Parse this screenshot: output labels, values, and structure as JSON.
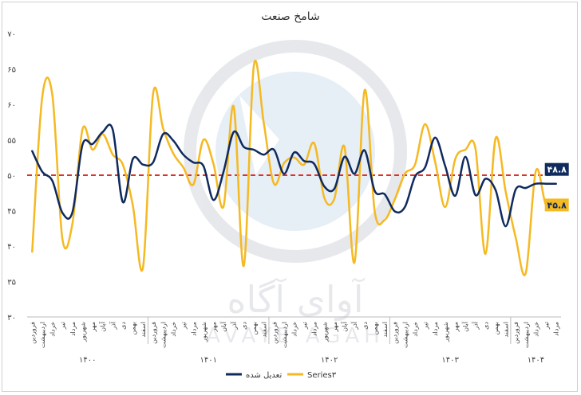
{
  "chart_data": {
    "type": "line",
    "title": "شامخ صنعت",
    "ylim": [
      30,
      70
    ],
    "yticks": [
      "۷۰",
      "۶۵",
      "۶۰",
      "۵۵",
      "۵۰",
      "۴۵",
      "۴۰",
      "۳۵",
      "۳۰"
    ],
    "ytick_values": [
      70,
      65,
      60,
      55,
      50,
      45,
      40,
      35,
      30
    ],
    "categories": [
      "فروردین",
      "اردیبهشت",
      "خرداد",
      "تیر",
      "مرداد",
      "شهریور",
      "مهر",
      "آبان",
      "آذر",
      "دی",
      "بهمن",
      "اسفند",
      "فروردین",
      "اردیبهشت",
      "خرداد",
      "تیر",
      "مرداد",
      "شهریور",
      "مهر",
      "آبان",
      "آذر",
      "دی",
      "بهمن",
      "اسفند",
      "فروردین",
      "اردیبهشت",
      "خرداد",
      "تیر",
      "مرداد",
      "شهریور",
      "مهر",
      "آبان",
      "آذر",
      "دی",
      "بهمن",
      "اسفند",
      "فروردین",
      "اردیبهشت",
      "خرداد",
      "تیر",
      "مرداد",
      "شهریور",
      "مهر",
      "آبان",
      "آذر",
      "دی",
      "بهمن",
      "اسفند",
      "فروردین",
      "اردیبهشت",
      "خرداد",
      "تیر",
      "مرداد"
    ],
    "year_groups": [
      {
        "label": "۱۴۰۰",
        "start": 0,
        "count": 12
      },
      {
        "label": "۱۴۰۱",
        "start": 12,
        "count": 12
      },
      {
        "label": "۱۴۰۲",
        "start": 24,
        "count": 12
      },
      {
        "label": "۱۴۰۳",
        "start": 36,
        "count": 12
      },
      {
        "label": "۱۴۰۴",
        "start": 48,
        "count": 5
      }
    ],
    "series": [
      {
        "name": "Series۳",
        "color": "#f5b921",
        "values": [
          39.2,
          61.0,
          61.3,
          41.0,
          43.2,
          56.5,
          53.6,
          55.8,
          52.9,
          51.5,
          45.7,
          37.0,
          61.5,
          56.6,
          53.1,
          51.1,
          48.7,
          55.0,
          51.6,
          45.6,
          59.7,
          37.2,
          65.4,
          57.3,
          48.8,
          51.7,
          52.5,
          51.5,
          54.5,
          46.8,
          46.7,
          54.0,
          37.7,
          62.0,
          44.9,
          43.7,
          46.6,
          50.2,
          51.5,
          57.2,
          51.9,
          45.5,
          52.3,
          53.6,
          53.8,
          38.9,
          55.2,
          47.7,
          41.2,
          36.2,
          50.6,
          45.8,
          45.8
        ]
      },
      {
        "name": "تعدیل شده",
        "color": "#0f2a5e",
        "values": [
          53.4,
          50.5,
          49.2,
          44.7,
          44.8,
          54.3,
          54.4,
          56.1,
          56.4,
          46.2,
          52.3,
          51.5,
          51.8,
          55.8,
          54.9,
          52.9,
          51.8,
          51.3,
          46.5,
          50.5,
          56.1,
          54.0,
          53.6,
          52.9,
          53.6,
          50.2,
          53.2,
          52.0,
          51.6,
          48.4,
          48.1,
          52.6,
          50.2,
          53.5,
          47.8,
          47.3,
          44.9,
          45.5,
          49.8,
          51.1,
          55.3,
          51.3,
          47.1,
          52.6,
          47.2,
          49.5,
          47.9,
          42.8,
          48.0,
          48.2,
          48.8,
          48.8,
          48.8
        ]
      }
    ],
    "reference_line": {
      "value": 50,
      "color": "#d9342b",
      "style": "dashed"
    },
    "data_labels": [
      {
        "series": "تعدیل شده",
        "text": "۴۸.۸",
        "value": 48.8,
        "bg": "#0f2a5e",
        "fg": "#ffffff"
      },
      {
        "series": "Series۳",
        "text": "۴۵.۸",
        "value": 45.8,
        "bg": "#f5b921",
        "fg": "#0f2a5e"
      }
    ],
    "legend": {
      "position": "bottom",
      "items": [
        "تعدیل شده",
        "Series۳"
      ]
    },
    "grid": false
  },
  "watermark": {
    "fa": "آوای آگاه",
    "en": "AVAYE AGAH"
  }
}
